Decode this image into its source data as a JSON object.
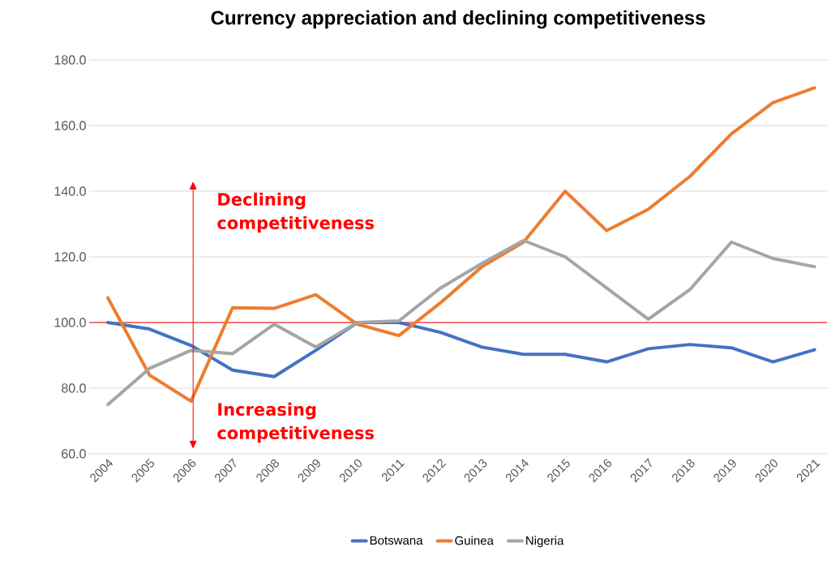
{
  "chart_data": {
    "type": "line",
    "title": "Currency appreciation and declining competitiveness",
    "categories": [
      "2004",
      "2005",
      "2006",
      "2007",
      "2008",
      "2009",
      "2010",
      "2011",
      "2012",
      "2013",
      "2014",
      "2015",
      "2016",
      "2017",
      "2018",
      "2019",
      "2020",
      "2021"
    ],
    "series": [
      {
        "name": "Botswana",
        "color": "#4472c4",
        "values": [
          100,
          98,
          93,
          85.5,
          83.5,
          91.5,
          100,
          100,
          97,
          92.5,
          90.3,
          90.3,
          88,
          92,
          93.3,
          92.3,
          88,
          91.7
        ]
      },
      {
        "name": "Guinea",
        "color": "#ed7d31",
        "values": [
          107.5,
          84,
          76,
          104.5,
          104.3,
          108.5,
          99.5,
          96,
          106,
          117,
          124.5,
          140,
          128,
          134.5,
          144.5,
          157.5,
          167,
          171.5
        ]
      },
      {
        "name": "Nigeria",
        "color": "#a5a5a5",
        "values": [
          75,
          86,
          91.5,
          90.5,
          99.5,
          92.5,
          100,
          100.5,
          110.5,
          118,
          125,
          120,
          110.5,
          101,
          110,
          124.5,
          119.5,
          117
        ]
      }
    ],
    "ylim": [
      60,
      180
    ],
    "yticks": [
      {
        "value": 60,
        "label": "60.0"
      },
      {
        "value": 80,
        "label": "80.0"
      },
      {
        "value": 100,
        "label": "100.0"
      },
      {
        "value": 120,
        "label": "120.0"
      },
      {
        "value": 140,
        "label": "140.0"
      },
      {
        "value": 160,
        "label": "160.0"
      },
      {
        "value": 180,
        "label": "180.0"
      }
    ],
    "ref_lines": [
      {
        "axis": "y",
        "value": 100,
        "color": "#ff0000"
      }
    ],
    "annotations": [
      "Declining competitiveness",
      "Increasing competitiveness"
    ],
    "grid": "y",
    "legend": "bottom",
    "marker": "none",
    "line_style": "solid"
  }
}
